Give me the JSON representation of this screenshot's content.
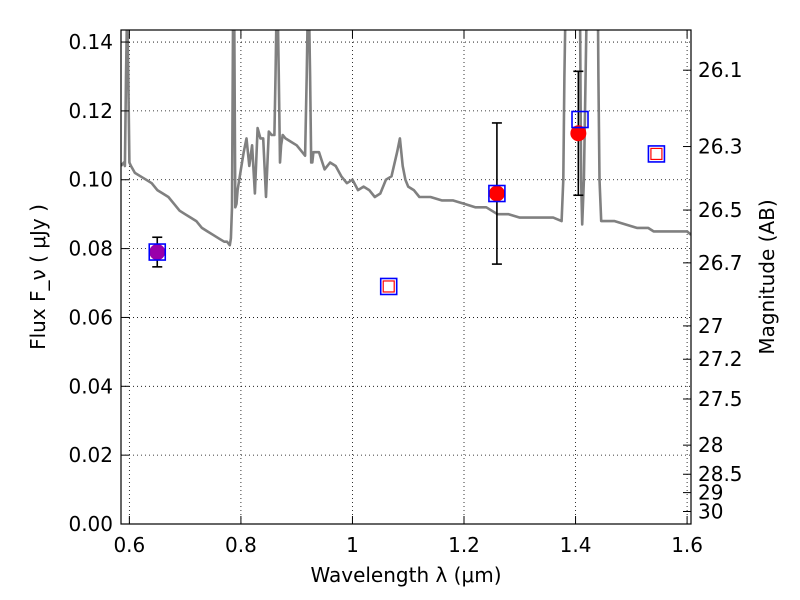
{
  "chart_data": {
    "type": "scatter",
    "xlabel": "Wavelength  λ (μm)",
    "ylabel": "Flux  F_ν  ( μJy )",
    "ylabel_right": "Magnitude (AB)",
    "xlim": [
      0.585,
      1.607
    ],
    "ylim": [
      0.0,
      0.1435
    ],
    "grid": true,
    "x_ticks": [
      0.6,
      0.8,
      1.0,
      1.2,
      1.4,
      1.6
    ],
    "x_tick_labels": [
      "0.6",
      "0.8",
      "1",
      "1.2",
      "1.4",
      "1.6"
    ],
    "y_ticks": [
      0.0,
      0.02,
      0.04,
      0.06,
      0.08,
      0.1,
      0.12,
      0.14
    ],
    "y_tick_labels": [
      "0.00",
      "0.02",
      "0.04",
      "0.06",
      "0.08",
      "0.10",
      "0.12",
      "0.14"
    ],
    "mag_ticks": [
      26.1,
      26.3,
      26.5,
      26.7,
      27,
      27.2,
      27.5,
      28,
      28.5,
      29,
      30
    ],
    "mag_tick_labels": [
      "26.1",
      "26.3",
      "26.5",
      "26.7",
      "27",
      "27.2",
      "27.5",
      "28",
      "28.5",
      "29",
      "30"
    ],
    "observed": [
      {
        "x": 0.65,
        "y": 0.079,
        "yerr": 0.0043,
        "color": "#9900aa"
      },
      {
        "x": 1.259,
        "y": 0.096,
        "yerr": 0.0205,
        "color": "#ff0000"
      },
      {
        "x": 1.405,
        "y": 0.1135,
        "yerr": 0.018,
        "color": "#ff0000"
      }
    ],
    "model": [
      {
        "x": 0.65,
        "y": 0.079
      },
      {
        "x": 1.065,
        "y": 0.069
      },
      {
        "x": 1.259,
        "y": 0.096
      },
      {
        "x": 1.408,
        "y": 0.1175
      },
      {
        "x": 1.545,
        "y": 0.1075
      }
    ],
    "model_inner": [
      {
        "x": 1.065,
        "y": 0.069
      },
      {
        "x": 1.545,
        "y": 0.1075
      }
    ],
    "spectrum": {
      "color": "#808080",
      "x": [
        0.585,
        0.59,
        0.592,
        0.594,
        0.596,
        0.598,
        0.6,
        0.603,
        0.61,
        0.62,
        0.63,
        0.64,
        0.65,
        0.66,
        0.67,
        0.68,
        0.69,
        0.7,
        0.71,
        0.72,
        0.73,
        0.74,
        0.75,
        0.76,
        0.77,
        0.775,
        0.78,
        0.782,
        0.784,
        0.786,
        0.788,
        0.79,
        0.792,
        0.794,
        0.796,
        0.8,
        0.805,
        0.81,
        0.815,
        0.82,
        0.825,
        0.83,
        0.835,
        0.84,
        0.845,
        0.85,
        0.855,
        0.86,
        0.862,
        0.864,
        0.866,
        0.868,
        0.87,
        0.872,
        0.875,
        0.88,
        0.89,
        0.9,
        0.91,
        0.915,
        0.918,
        0.92,
        0.922,
        0.924,
        0.926,
        0.928,
        0.93,
        0.94,
        0.95,
        0.96,
        0.97,
        0.98,
        0.99,
        1.0,
        1.01,
        1.02,
        1.03,
        1.04,
        1.05,
        1.06,
        1.07,
        1.08,
        1.085,
        1.09,
        1.095,
        1.1,
        1.11,
        1.12,
        1.14,
        1.16,
        1.18,
        1.2,
        1.22,
        1.24,
        1.26,
        1.28,
        1.3,
        1.32,
        1.34,
        1.36,
        1.375,
        1.378,
        1.38,
        1.382,
        1.39,
        1.4,
        1.405,
        1.408,
        1.41,
        1.412,
        1.415,
        1.42,
        1.43,
        1.44,
        1.441,
        1.443,
        1.446,
        1.45,
        1.47,
        1.49,
        1.51,
        1.53,
        1.54,
        1.56,
        1.58,
        1.6,
        1.607
      ],
      "y": [
        0.104,
        0.105,
        0.104,
        0.13,
        0.15,
        0.13,
        0.105,
        0.104,
        0.102,
        0.101,
        0.1,
        0.099,
        0.097,
        0.096,
        0.095,
        0.093,
        0.091,
        0.09,
        0.089,
        0.088,
        0.086,
        0.085,
        0.084,
        0.083,
        0.082,
        0.082,
        0.081,
        0.083,
        0.092,
        0.15,
        0.15,
        0.092,
        0.093,
        0.097,
        0.099,
        0.103,
        0.108,
        0.112,
        0.104,
        0.11,
        0.096,
        0.115,
        0.112,
        0.112,
        0.095,
        0.114,
        0.113,
        0.113,
        0.13,
        0.15,
        0.15,
        0.13,
        0.105,
        0.11,
        0.113,
        0.112,
        0.111,
        0.11,
        0.108,
        0.107,
        0.13,
        0.15,
        0.15,
        0.13,
        0.105,
        0.105,
        0.108,
        0.108,
        0.103,
        0.105,
        0.104,
        0.101,
        0.099,
        0.1,
        0.097,
        0.098,
        0.097,
        0.095,
        0.096,
        0.1,
        0.101,
        0.108,
        0.112,
        0.104,
        0.1,
        0.098,
        0.097,
        0.095,
        0.095,
        0.094,
        0.094,
        0.093,
        0.092,
        0.092,
        0.09,
        0.09,
        0.089,
        0.089,
        0.089,
        0.089,
        0.088,
        0.1,
        0.13,
        0.15,
        0.15,
        0.15,
        0.15,
        0.15,
        0.1,
        0.087,
        0.1,
        0.15,
        0.15,
        0.15,
        0.13,
        0.1,
        0.088,
        0.088,
        0.088,
        0.087,
        0.086,
        0.086,
        0.085,
        0.085,
        0.085,
        0.085,
        0.084
      ]
    }
  }
}
